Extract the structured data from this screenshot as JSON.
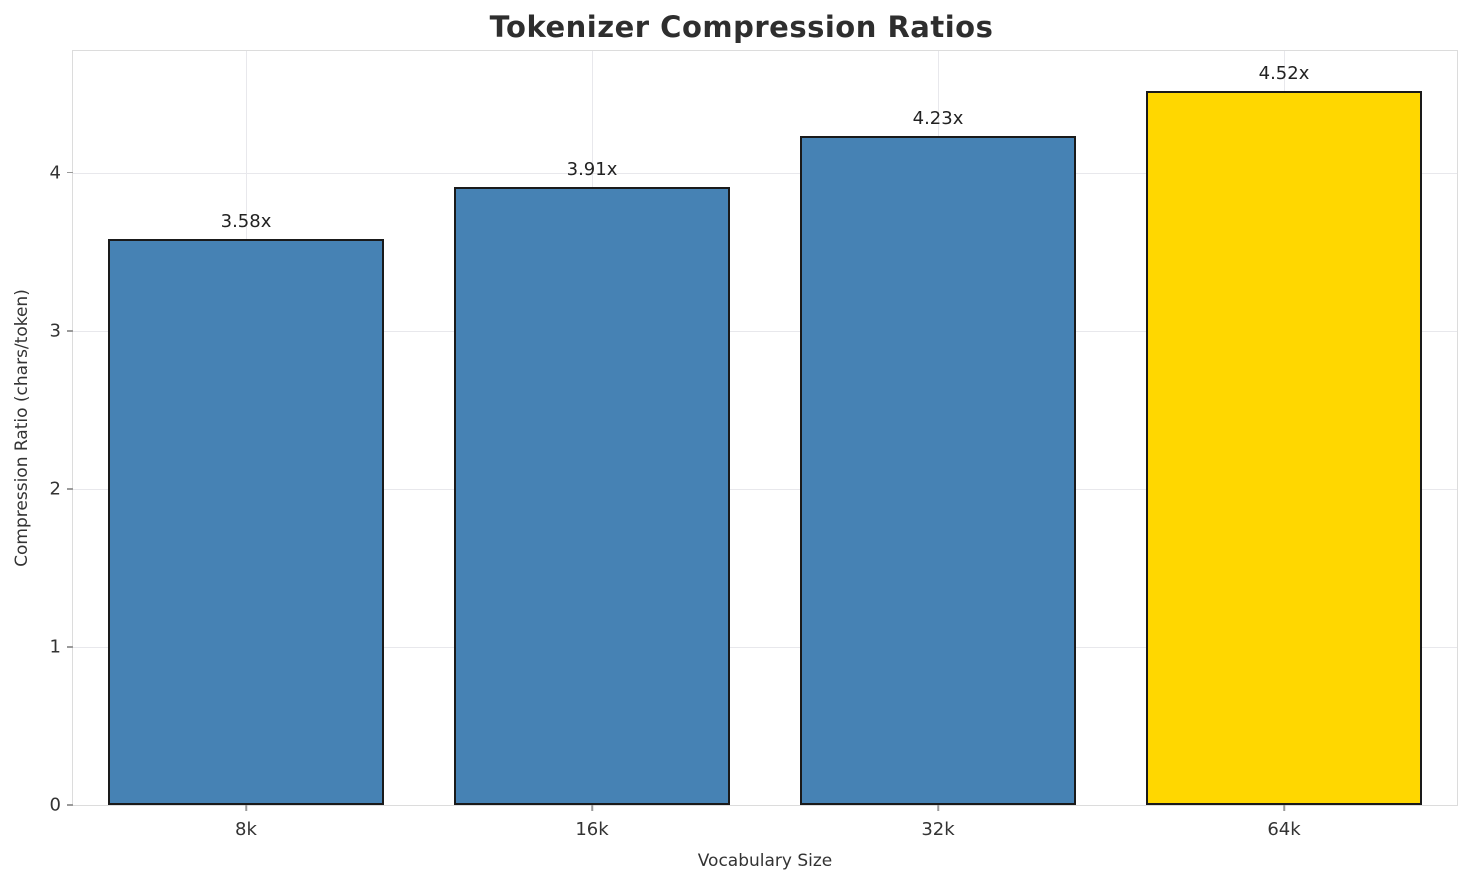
{
  "chart_data": {
    "type": "bar",
    "title": "Tokenizer Compression Ratios",
    "xlabel": "Vocabulary Size",
    "ylabel": "Compression Ratio (chars/token)",
    "categories": [
      "8k",
      "16k",
      "32k",
      "64k"
    ],
    "values": [
      3.58,
      3.91,
      4.23,
      4.52
    ],
    "value_labels": [
      "3.58x",
      "3.91x",
      "4.23x",
      "4.52x"
    ],
    "bar_colors": [
      "#4682B4",
      "#4682B4",
      "#4682B4",
      "#FFD700"
    ],
    "bar_edge_color": "#1a1a1a",
    "yticks": [
      0,
      1,
      2,
      3,
      4
    ],
    "ylim": [
      0,
      4.77
    ],
    "grid": true,
    "legend": "none",
    "background_color": "#ffffff",
    "grid_color": "#e8e8ec"
  }
}
